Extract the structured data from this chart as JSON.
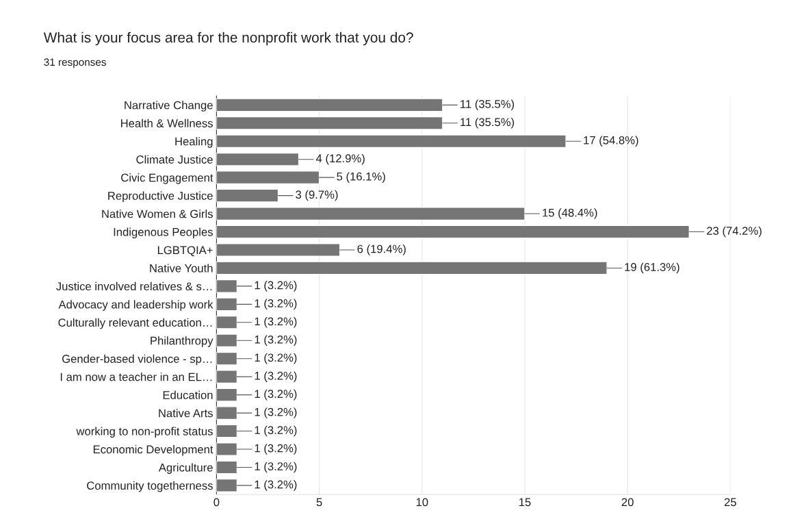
{
  "chart_data": {
    "type": "bar",
    "orientation": "horizontal",
    "title": "What is your focus area for the nonprofit work that you do?",
    "subtitle": "31 responses",
    "categories": [
      "Narrative Change",
      "Health & Wellness",
      "Healing",
      "Climate Justice",
      "Civic Engagement",
      "Reproductive Justice",
      "Native Women & Girls",
      "Indigenous Peoples",
      "LGBTQIA+",
      "Native Youth",
      "Justice involved relatives & s…",
      "Advocacy and leadership work",
      "Culturally relevant education…",
      "Philanthropy",
      "Gender-based violence - sp…",
      "I am now a teacher in an EL…",
      "Education",
      "Native Arts",
      "working to non-profit status",
      "Economic Development",
      "Agriculture",
      "Community togetherness"
    ],
    "values": [
      11,
      11,
      17,
      4,
      5,
      3,
      15,
      23,
      6,
      19,
      1,
      1,
      1,
      1,
      1,
      1,
      1,
      1,
      1,
      1,
      1,
      1
    ],
    "value_labels": [
      "11 (35.5%)",
      "11 (35.5%)",
      "17 (54.8%)",
      "4 (12.9%)",
      "5 (16.1%)",
      "3 (9.7%)",
      "15 (48.4%)",
      "23 (74.2%)",
      "6 (19.4%)",
      "19 (61.3%)",
      "1 (3.2%)",
      "1 (3.2%)",
      "1 (3.2%)",
      "1 (3.2%)",
      "1 (3.2%)",
      "1 (3.2%)",
      "1 (3.2%)",
      "1 (3.2%)",
      "1 (3.2%)",
      "1 (3.2%)",
      "1 (3.2%)",
      "1 (3.2%)"
    ],
    "color": "#757575",
    "xlim": [
      0,
      25
    ],
    "xticks": [
      0,
      5,
      10,
      15,
      20,
      25
    ],
    "grid": "x"
  }
}
